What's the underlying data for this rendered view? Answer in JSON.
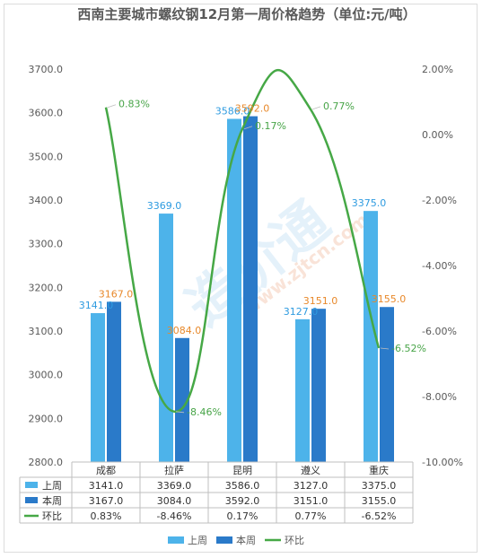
{
  "chart_data": {
    "type": "bar",
    "title": "西南主要城市螺纹钢12月第一周价格趋势（单位:元/吨）",
    "categories": [
      "成都",
      "拉萨",
      "昆明",
      "遵义",
      "重庆"
    ],
    "series": [
      {
        "name": "上周",
        "values": [
          3141.0,
          3369.0,
          3586.0,
          3127.0,
          3375.0
        ],
        "color": "#4db3ea",
        "type": "bar"
      },
      {
        "name": "本周",
        "values": [
          3167.0,
          3084.0,
          3592.0,
          3151.0,
          3155.0
        ],
        "color": "#2a7ac9",
        "type": "bar"
      },
      {
        "name": "环比",
        "values": [
          0.83,
          -8.46,
          0.17,
          0.77,
          -6.52
        ],
        "color": "#46a846",
        "type": "line",
        "axis": "right"
      }
    ],
    "value_labels": {
      "prev": [
        "3141.0",
        "3369.0",
        "3586.0",
        "3127.0",
        "3375.0"
      ],
      "curr": [
        "3167.0",
        "3084.0",
        "3592.0",
        "3151.0",
        "3155.0"
      ],
      "ratio": [
        "0.83%",
        "-8.46%",
        "0.17%",
        "0.77%",
        "-6.52%"
      ]
    },
    "y_left": {
      "min": 2800,
      "max": 3700,
      "step": 100,
      "ticks": [
        "2800.0",
        "2900.0",
        "3000.0",
        "3100.0",
        "3200.0",
        "3300.0",
        "3400.0",
        "3500.0",
        "3600.0",
        "3700.0"
      ]
    },
    "y_right": {
      "min": -10,
      "max": 2,
      "step": 2,
      "ticks": [
        "-10.00%",
        "-8.00%",
        "-6.00%",
        "-4.00%",
        "-2.00%",
        "0.00%",
        "2.00%"
      ]
    },
    "legend": {
      "position": "bottom",
      "items": [
        "上周",
        "本周",
        "环比"
      ]
    },
    "data_table": true,
    "watermark": {
      "text": "造价通",
      "url": "www.zjtcn.com"
    }
  }
}
